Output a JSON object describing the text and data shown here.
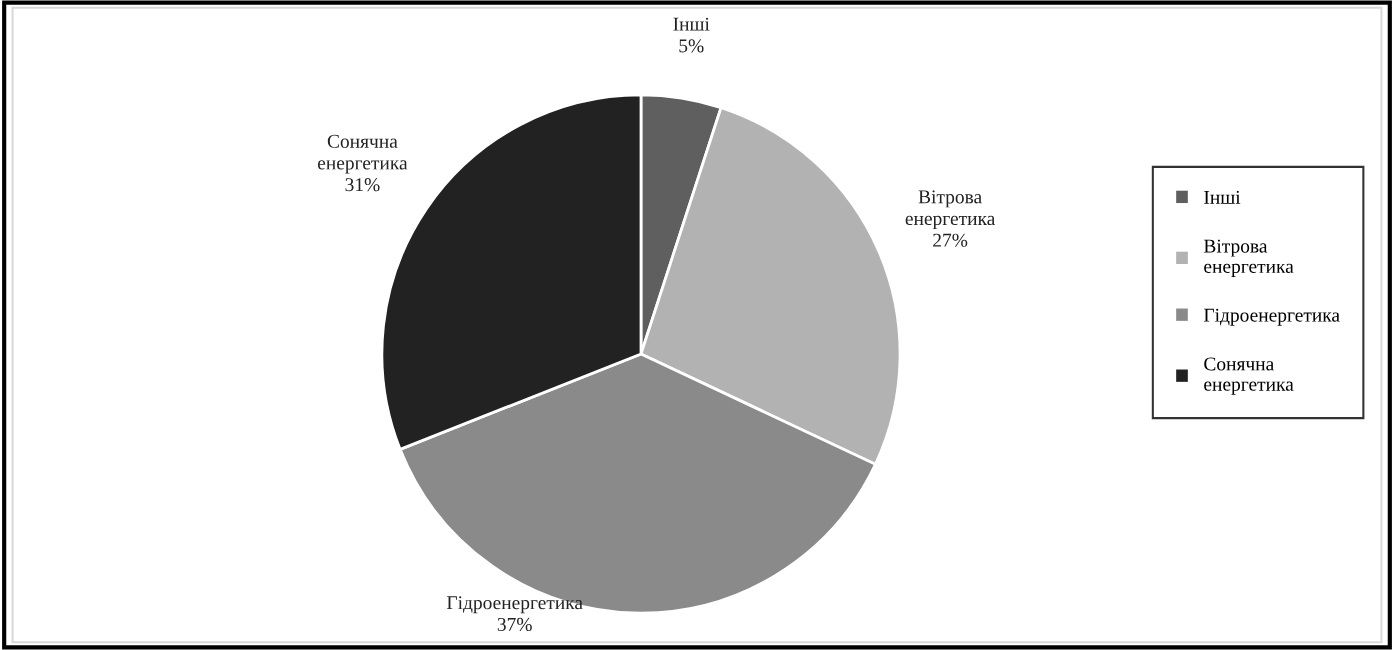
{
  "chart_data": {
    "type": "pie",
    "categories": [
      "Інші",
      "Вітрова енергетика",
      "Гідроенергетика",
      "Сонячна енергетика"
    ],
    "values": [
      5,
      27,
      37,
      31
    ],
    "colors": [
      "#5f5f5f",
      "#b2b2b2",
      "#8a8a8a",
      "#222222"
    ],
    "value_labels": [
      "5%",
      "27%",
      "37%",
      "31%"
    ],
    "legend": "right"
  }
}
